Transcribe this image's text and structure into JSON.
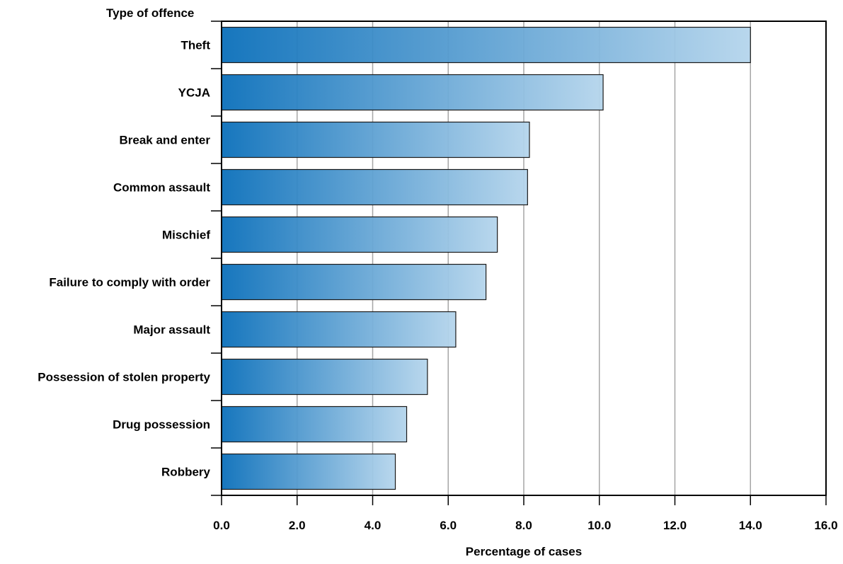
{
  "chart_data": {
    "type": "bar",
    "orientation": "horizontal",
    "ylabel": "Type of offence",
    "xlabel": "Percentage of cases",
    "categories": [
      "Theft",
      "YCJA",
      "Break and enter",
      "Common assault",
      "Mischief",
      "Failure to comply with order",
      "Major assault",
      "Possession of stolen property",
      "Drug possession",
      "Robbery"
    ],
    "values": [
      14.0,
      10.1,
      8.15,
      8.1,
      7.3,
      7.0,
      6.2,
      5.45,
      4.9,
      4.6
    ],
    "xlim": [
      0,
      16
    ],
    "xticks": [
      "0.0",
      "2.0",
      "4.0",
      "6.0",
      "8.0",
      "10.0",
      "12.0",
      "14.0",
      "16.0"
    ],
    "grid": "vertical",
    "colors": {
      "bar_start": "#0a6fba",
      "bar_end": "#b5d5ec",
      "grid": "#a6a6a6",
      "axis": "#000000"
    }
  }
}
